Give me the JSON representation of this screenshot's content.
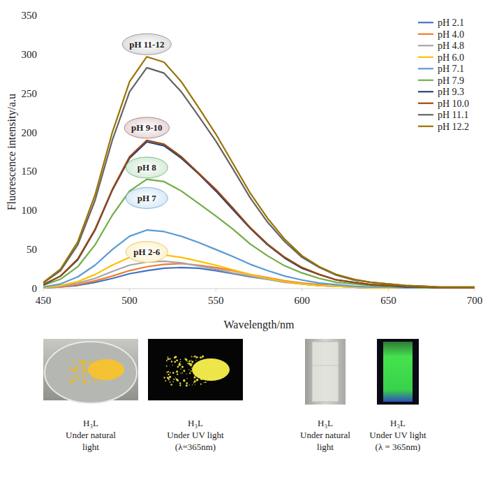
{
  "chart_data": {
    "type": "line",
    "x_label": "Wavelength/nm",
    "y_label": "Fluorescence intensity/a.u",
    "x": [
      450,
      460,
      470,
      480,
      490,
      500,
      510,
      520,
      530,
      540,
      550,
      560,
      570,
      580,
      590,
      600,
      610,
      620,
      630,
      640,
      650,
      660,
      670,
      680,
      690,
      700
    ],
    "xlim": [
      450,
      700
    ],
    "xticks": [
      450,
      500,
      550,
      600,
      650,
      700
    ],
    "ylim": [
      0,
      350
    ],
    "yticks": [
      0,
      50,
      100,
      150,
      200,
      250,
      300,
      350
    ],
    "grid": false,
    "legend": "top-right",
    "series": [
      {
        "name": "pH 2.1",
        "color": "#4472c4",
        "values": [
          1,
          2,
          4,
          8,
          13,
          19,
          23,
          26,
          27,
          26,
          23,
          19,
          15,
          12,
          9,
          6,
          4,
          3,
          2,
          1,
          1,
          1,
          0,
          0,
          0,
          0
        ]
      },
      {
        "name": "pH 4.0",
        "color": "#ed7d31",
        "values": [
          1,
          2,
          5,
          10,
          16,
          23,
          28,
          31,
          32,
          30,
          27,
          23,
          18,
          14,
          10,
          7,
          5,
          3,
          2,
          1,
          1,
          1,
          0,
          0,
          0,
          0
        ]
      },
      {
        "name": "pH 4.8",
        "color": "#a5a5a5",
        "values": [
          1,
          3,
          7,
          13,
          22,
          30,
          34,
          35,
          33,
          29,
          25,
          20,
          16,
          12,
          8,
          6,
          4,
          3,
          2,
          1,
          1,
          1,
          0,
          0,
          0,
          0
        ]
      },
      {
        "name": "pH 6.0",
        "color": "#ffc000",
        "values": [
          1,
          4,
          9,
          18,
          30,
          40,
          44,
          43,
          40,
          35,
          30,
          24,
          18,
          13,
          9,
          6,
          4,
          3,
          2,
          1,
          1,
          1,
          1,
          0,
          0,
          0
        ]
      },
      {
        "name": "pH 7.1",
        "color": "#5b9bd5",
        "values": [
          2,
          6,
          15,
          30,
          50,
          67,
          75,
          73,
          67,
          59,
          50,
          41,
          31,
          23,
          16,
          11,
          7,
          5,
          3,
          2,
          2,
          1,
          1,
          1,
          1,
          1
        ]
      },
      {
        "name": "pH 7.9",
        "color": "#70ad47",
        "values": [
          4,
          12,
          28,
          56,
          94,
          125,
          140,
          137,
          125,
          109,
          93,
          76,
          57,
          42,
          29,
          20,
          13,
          8,
          6,
          4,
          3,
          2,
          1,
          1,
          1,
          1
        ]
      },
      {
        "name": "pH 9.3",
        "color": "#264478",
        "values": [
          5,
          16,
          37,
          75,
          126,
          167,
          188,
          183,
          167,
          147,
          125,
          101,
          77,
          56,
          39,
          26,
          18,
          11,
          8,
          5,
          4,
          2,
          2,
          1,
          1,
          1
        ]
      },
      {
        "name": "pH 10.0",
        "color": "#9e480e",
        "values": [
          5,
          16,
          38,
          76,
          127,
          169,
          190,
          185,
          169,
          148,
          127,
          103,
          78,
          57,
          40,
          27,
          18,
          11,
          8,
          5,
          4,
          3,
          2,
          1,
          1,
          1
        ]
      },
      {
        "name": "pH 11.1",
        "color": "#636363",
        "values": [
          7,
          23,
          56,
          113,
          190,
          252,
          283,
          276,
          252,
          221,
          189,
          153,
          116,
          85,
          60,
          40,
          27,
          17,
          11,
          8,
          6,
          4,
          3,
          2,
          2,
          2
        ]
      },
      {
        "name": "pH 12.2",
        "color": "#997300",
        "values": [
          8,
          25,
          60,
          120,
          200,
          265,
          297,
          290,
          265,
          232,
          198,
          160,
          122,
          90,
          63,
          42,
          28,
          18,
          12,
          8,
          6,
          4,
          3,
          2,
          2,
          2
        ]
      }
    ],
    "annotations": [
      {
        "text": "pH 11-12",
        "x": 510,
        "y": 313
      },
      {
        "text": "pH 9-10",
        "x": 510,
        "y": 206
      },
      {
        "text": "pH 8",
        "x": 510,
        "y": 155
      },
      {
        "text": "pH 7",
        "x": 510,
        "y": 116
      },
      {
        "text": "pH 2-6",
        "x": 510,
        "y": 47
      }
    ]
  },
  "photos": [
    {
      "caption": [
        "H₃L",
        "Under natural",
        "light"
      ]
    },
    {
      "caption": [
        "H₃L",
        "Under UV light",
        "(λ=365nm)"
      ]
    },
    {
      "caption": [
        "H₃L",
        "Under natural",
        "light"
      ]
    },
    {
      "caption": [
        "H₃L",
        "Under UV light",
        "(λ = 365nm)"
      ]
    }
  ]
}
